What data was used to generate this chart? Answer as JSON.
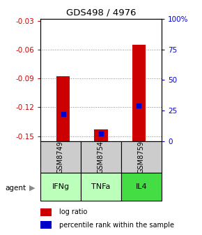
{
  "title": "GDS498 / 4976",
  "samples": [
    "GSM8749",
    "GSM8754",
    "GSM8759"
  ],
  "agents": [
    "IFNg",
    "TNFa",
    "IL4"
  ],
  "log_ratios": [
    -0.088,
    -0.143,
    -0.055
  ],
  "percentile_values": [
    -0.127,
    -0.147,
    -0.118
  ],
  "ylim_left": [
    -0.155,
    -0.028
  ],
  "ylim_right": [
    0,
    100
  ],
  "yticks_left": [
    -0.15,
    -0.12,
    -0.09,
    -0.06,
    -0.03
  ],
  "yticks_right": [
    0,
    25,
    50,
    75,
    100
  ],
  "ytick_labels_right": [
    "0",
    "25",
    "50",
    "75",
    "100%"
  ],
  "bar_color": "#cc0000",
  "percentile_color": "#0000cc",
  "agent_colors": [
    "#bbffbb",
    "#bbffbb",
    "#44dd44"
  ],
  "sample_bg_color": "#cccccc",
  "grid_color": "#888888",
  "bar_width": 0.35,
  "percentile_marker_size": 5
}
